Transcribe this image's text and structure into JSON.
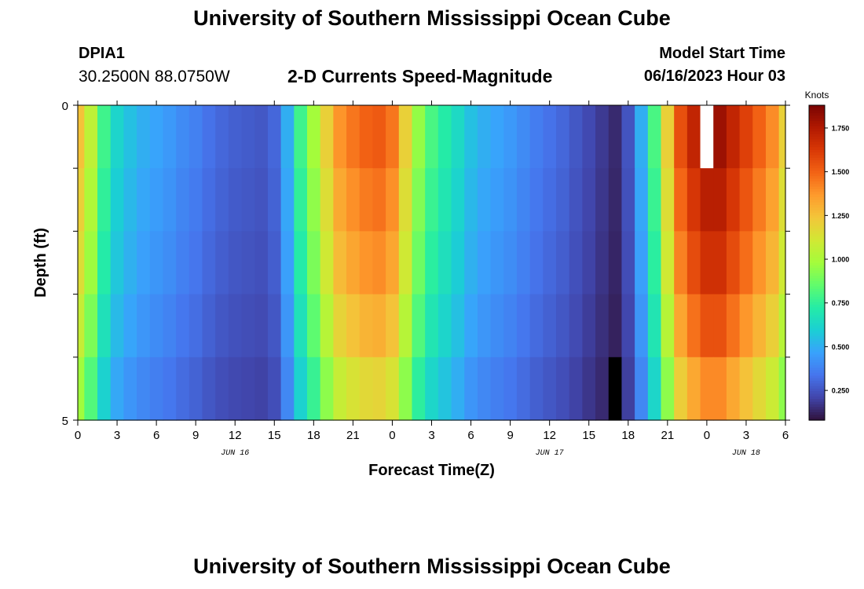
{
  "page": {
    "title": "University of Southern Mississippi Ocean Cube",
    "station_id": "DPIA1",
    "station_coords": "30.2500N  88.0750W",
    "subtitle": "2-D Currents Speed-Magnitude",
    "model_start_label": "Model Start Time",
    "model_start_value": "06/16/2023 Hour 03",
    "footer_title": "University of Southern Mississippi Ocean Cube"
  },
  "chart_data": {
    "type": "heatmap",
    "title": "2-D Currents Speed-Magnitude",
    "xlabel": "Forecast Time(Z)",
    "ylabel": "Depth (ft)",
    "colorbar_label": "Knots",
    "x_tick_labels": [
      "0",
      "3",
      "6",
      "9",
      "12",
      "15",
      "18",
      "21",
      "0",
      "3",
      "6",
      "9",
      "12",
      "15",
      "18",
      "21",
      "0",
      "3",
      "6"
    ],
    "x_hours_from_jun16_00z": [
      0,
      3,
      6,
      9,
      12,
      15,
      18,
      21,
      24,
      27,
      30,
      33,
      36,
      39,
      42,
      45,
      48,
      51,
      54
    ],
    "date_labels": [
      {
        "text": "JUN 16",
        "hour": 12
      },
      {
        "text": "JUN 17",
        "hour": 36
      },
      {
        "text": "JUN 18",
        "hour": 51
      }
    ],
    "y_tick_labels": [
      "0",
      "5"
    ],
    "ylim": [
      0,
      5
    ],
    "y_inverted": true,
    "depth_layers": 5,
    "colorbar": {
      "min": 0.08,
      "max": 1.88,
      "tick_labels": [
        "0.250",
        "0.500",
        "0.750",
        "1.000",
        "1.250",
        "1.500",
        "1.750"
      ],
      "tick_values": [
        0.25,
        0.5,
        0.75,
        1.0,
        1.25,
        1.5,
        1.75
      ],
      "colormap": [
        "#30123b",
        "#4145ab",
        "#4675ed",
        "#39a2fc",
        "#1bcfd4",
        "#24eca6",
        "#61fc6c",
        "#a4fc3b",
        "#d1e834",
        "#f3c63a",
        "#fe9b2d",
        "#f36315",
        "#d93806",
        "#b11901",
        "#7a0403"
      ]
    },
    "grid": false,
    "series_profile": {
      "description": "Surface-layer current speed (knots) by hour from 00Z Jun 16; deeper layers scaled slightly lower",
      "hours": [
        0,
        1,
        2,
        3,
        4,
        5,
        6,
        7,
        8,
        9,
        10,
        11,
        12,
        13,
        14,
        15,
        16,
        17,
        18,
        19,
        20,
        21,
        22,
        23,
        24,
        25,
        26,
        27,
        28,
        29,
        30,
        31,
        32,
        33,
        34,
        35,
        36,
        37,
        38,
        39,
        40,
        41,
        42,
        43,
        44,
        45,
        46,
        47,
        48,
        49,
        50,
        51,
        52,
        53,
        54
      ],
      "speed": [
        1.25,
        1.05,
        0.78,
        0.62,
        0.55,
        0.5,
        0.47,
        0.44,
        0.4,
        0.37,
        0.33,
        0.3,
        0.28,
        0.27,
        0.26,
        0.3,
        0.5,
        0.78,
        0.98,
        1.2,
        1.38,
        1.45,
        1.5,
        1.52,
        1.45,
        1.2,
        0.95,
        0.8,
        0.72,
        0.64,
        0.55,
        0.5,
        0.47,
        0.44,
        0.4,
        0.36,
        0.33,
        0.3,
        0.26,
        0.22,
        0.18,
        0.14,
        0.25,
        0.5,
        0.8,
        1.2,
        1.55,
        1.7,
        1.8,
        1.8,
        1.7,
        1.6,
        1.5,
        1.4,
        1.2
      ],
      "layer_factors": [
        1.0,
        0.96,
        0.92,
        0.86,
        0.78
      ],
      "missing_cells": [
        {
          "hour": 48,
          "layer": 0,
          "color": "#ffffff"
        },
        {
          "hour": 41,
          "layer": 4,
          "color": "#000000"
        }
      ]
    }
  }
}
